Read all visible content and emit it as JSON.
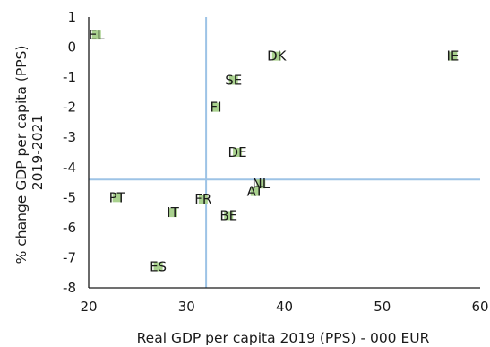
{
  "chart_data": {
    "type": "scatter",
    "title": "",
    "xlabel": "Real GDP per capita 2019 (PPS) - 000 EUR",
    "ylabel_lines": [
      "% change GDP per capita (PPS)",
      "2019-2021"
    ],
    "xlim": [
      20,
      60
    ],
    "ylim": [
      -8,
      1
    ],
    "xticks": [
      20,
      30,
      40,
      50,
      60
    ],
    "yticks": [
      1,
      0,
      -1,
      -2,
      -3,
      -4,
      -5,
      -6,
      -7,
      -8
    ],
    "grid": false,
    "legend": "none",
    "reference_lines": {
      "x": 32,
      "y": -4.4
    },
    "colors": {
      "marker": "#a9d18e",
      "reference": "#9dc3e6",
      "axis": "#1a1a1a"
    },
    "points": [
      {
        "label": "EL",
        "x": 20.8,
        "y": 0.4
      },
      {
        "label": "DK",
        "x": 39.2,
        "y": -0.3
      },
      {
        "label": "IE",
        "x": 57.2,
        "y": -0.3
      },
      {
        "label": "SE",
        "x": 34.8,
        "y": -1.1
      },
      {
        "label": "FI",
        "x": 33.0,
        "y": -2.0
      },
      {
        "label": "DE",
        "x": 35.2,
        "y": -3.5
      },
      {
        "label": "NL",
        "x": 37.6,
        "y": -4.55
      },
      {
        "label": "AT",
        "x": 37.0,
        "y": -4.8
      },
      {
        "label": "PT",
        "x": 22.9,
        "y": -5.0
      },
      {
        "label": "FR",
        "x": 31.7,
        "y": -5.05
      },
      {
        "label": "IT",
        "x": 28.6,
        "y": -5.5
      },
      {
        "label": "BE",
        "x": 34.3,
        "y": -5.6
      },
      {
        "label": "ES",
        "x": 27.1,
        "y": -7.3
      }
    ]
  }
}
